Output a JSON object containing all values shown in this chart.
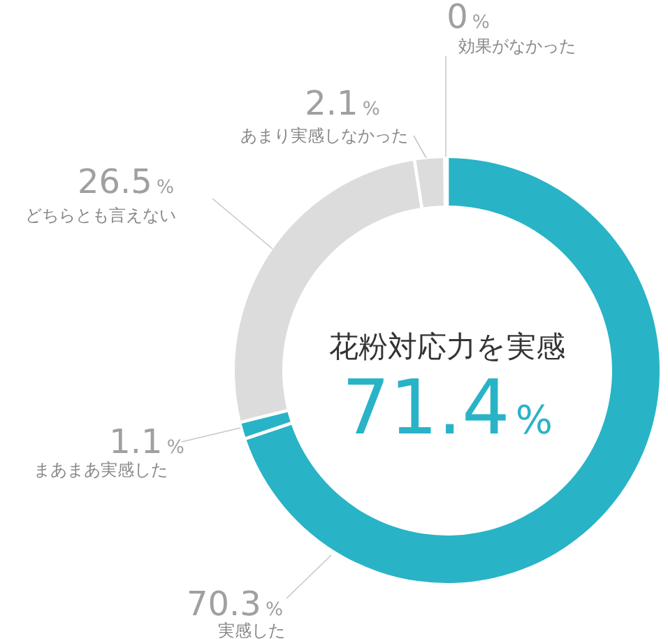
{
  "chart_data": {
    "type": "donut",
    "categories": [
      "実感した",
      "まあまあ実感した",
      "どちらとも言えない",
      "あまり実感しなかった",
      "効果がなかった"
    ],
    "values": [
      70.3,
      1.1,
      26.5,
      2.1,
      0
    ],
    "colors": [
      "#29b3c6",
      "#29b3c6",
      "#dcdcdc",
      "#dcdcdc",
      "#dcdcdc"
    ],
    "value_labels": [
      "70.3%",
      "1.1%",
      "26.5%",
      "2.1%",
      "0%"
    ],
    "annotations": [
      "花粉対応力を実感",
      "71.4%"
    ]
  }
}
